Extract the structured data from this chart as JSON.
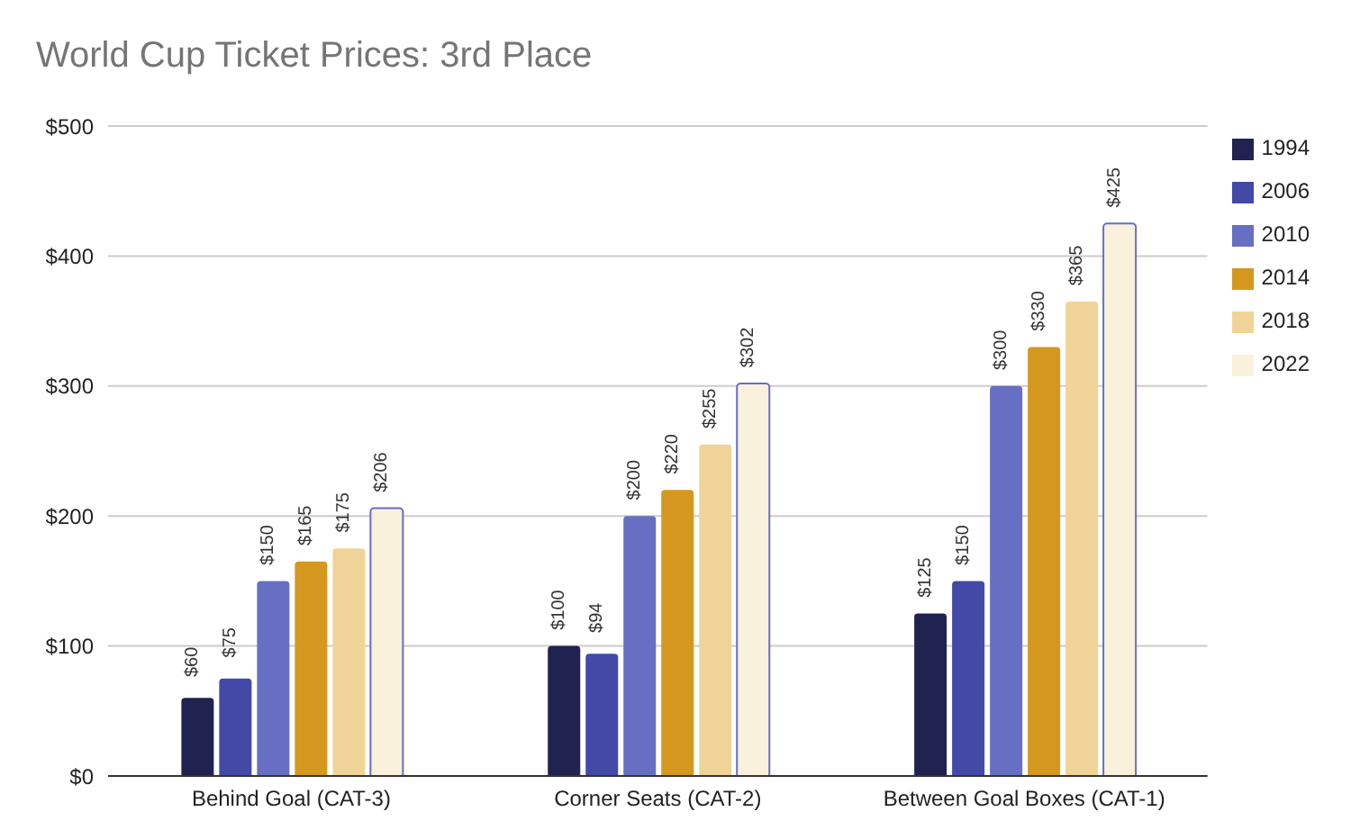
{
  "chart_data": {
    "type": "bar",
    "title": "World Cup Ticket Prices: 3rd Place",
    "categories": [
      "Behind Goal (CAT-3)",
      "Corner Seats (CAT-2)",
      "Between Goal Boxes (CAT-1)"
    ],
    "series": [
      {
        "name": "1994",
        "color": "#20234f",
        "values": [
          60,
          100,
          125
        ],
        "value_labels": [
          "$60",
          "$100",
          "$125"
        ]
      },
      {
        "name": "2006",
        "color": "#4249a6",
        "values": [
          75,
          94,
          150
        ],
        "value_labels": [
          "$75",
          "$94",
          "$150"
        ]
      },
      {
        "name": "2010",
        "color": "#666fc2",
        "values": [
          150,
          200,
          300
        ],
        "value_labels": [
          "$150",
          "$200",
          "$300"
        ]
      },
      {
        "name": "2014",
        "color": "#d4981f",
        "values": [
          165,
          220,
          330
        ],
        "value_labels": [
          "$165",
          "$220",
          "$330"
        ]
      },
      {
        "name": "2018",
        "color": "#f0d497",
        "values": [
          175,
          255,
          365
        ],
        "value_labels": [
          "$175",
          "$255",
          "$365"
        ]
      },
      {
        "name": "2022",
        "color": "#faf1dc",
        "values": [
          206,
          302,
          425
        ],
        "value_labels": [
          "$206",
          "$302",
          "$425"
        ]
      }
    ],
    "ylim": [
      0,
      500
    ],
    "yticks": [
      {
        "value": 0,
        "label": "$0"
      },
      {
        "value": 100,
        "label": "$100"
      },
      {
        "value": 200,
        "label": "$200"
      },
      {
        "value": 300,
        "label": "$300"
      },
      {
        "value": 400,
        "label": "$400"
      },
      {
        "value": 500,
        "label": "$500"
      }
    ],
    "grid": "y",
    "legend": "right"
  }
}
